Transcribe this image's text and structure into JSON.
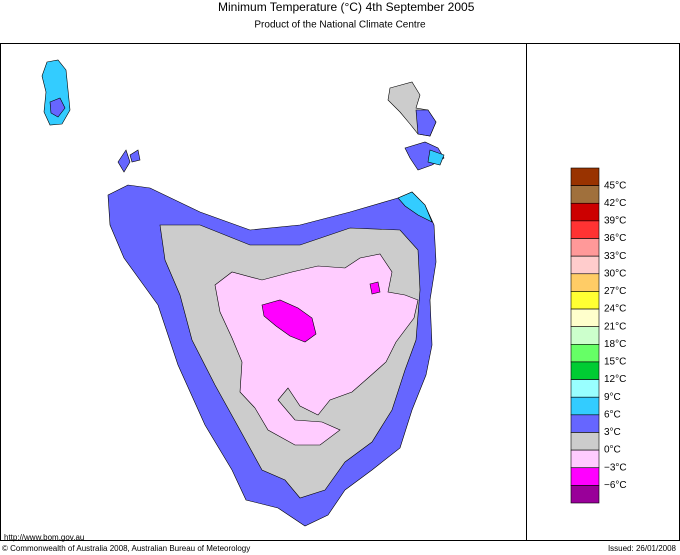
{
  "header": {
    "title": "Minimum Temperature (°C)",
    "date": "4th September 2005",
    "subtitle": "Product of the National Climate Centre"
  },
  "legend": {
    "colors": [
      "#993300",
      "#a0703c",
      "#cc0000",
      "#ff3333",
      "#ff9999",
      "#ffcccc",
      "#ffcc66",
      "#ffff33",
      "#ffffcc",
      "#ccffcc",
      "#66ff66",
      "#00cc33",
      "#99ffff",
      "#33ccff",
      "#6666ff",
      "#cccccc",
      "#ffccff",
      "#ff00ff",
      "#990099"
    ],
    "labels": [
      "45°C",
      "42°C",
      "39°C",
      "36°C",
      "33°C",
      "30°C",
      "27°C",
      "24°C",
      "21°C",
      "18°C",
      "15°C",
      "12°C",
      "9°C",
      "6°C",
      "3°C",
      "0°C",
      "−3°C",
      "−6°C"
    ]
  },
  "footer": {
    "url": "http://www.bom.gov.au",
    "copyright": "© Commonwealth of Australia 2008, Australian Bureau of Meteorology",
    "issued": "Issued: 26/01/2008"
  }
}
